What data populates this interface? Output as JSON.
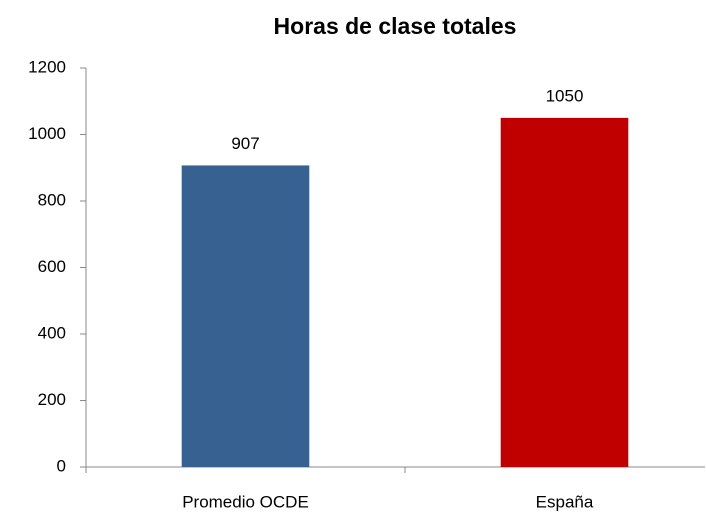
{
  "chart_data": {
    "type": "bar",
    "title": "Horas de clase totales",
    "categories": [
      "Promedio OCDE",
      "España"
    ],
    "values": [
      907,
      1050
    ],
    "colors": [
      "#376190",
      "#c00000"
    ],
    "ylim": [
      0,
      1200
    ],
    "yticks": [
      0,
      200,
      400,
      600,
      800,
      1000,
      1200
    ],
    "grid": false
  }
}
